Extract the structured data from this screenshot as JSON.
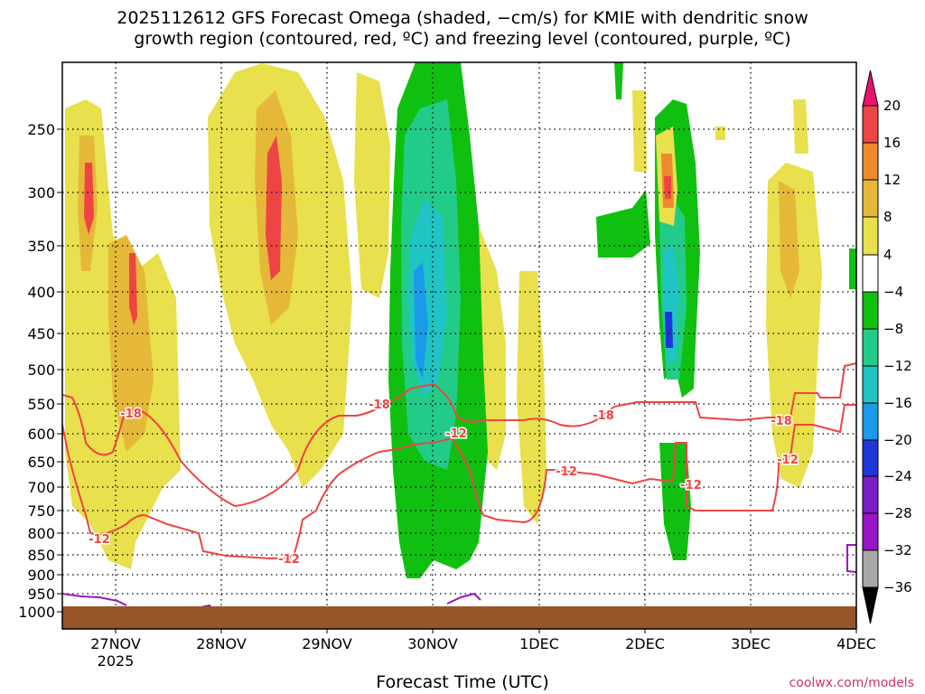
{
  "title_line1": "2025112612 GFS Forecast Omega (shaded, −cm/s) for KMIE with dendritic snow",
  "title_line2": "growth region (contoured, red, ºC) and freezing level (contoured, purple, ºC)",
  "x_axis_title": "Forecast Time (UTC)",
  "credit": "coolwx.com/models",
  "chart_data": {
    "type": "heatmap",
    "x_ticks": [
      "27NOV",
      "28NOV",
      "29NOV",
      "30NOV",
      "1DEC",
      "2DEC",
      "3DEC",
      "4DEC"
    ],
    "x_tick_year": "2025",
    "y_ticks": [
      "250",
      "300",
      "350",
      "400",
      "450",
      "500",
      "550",
      "600",
      "650",
      "700",
      "750",
      "800",
      "850",
      "900",
      "950",
      "1000"
    ],
    "colorbar_ticks": [
      "20",
      "16",
      "12",
      "8",
      "4",
      "−4",
      "−8",
      "−12",
      "−16",
      "−20",
      "−24",
      "−28",
      "−32",
      "−36"
    ],
    "colorbar_colors": [
      "#e8136d",
      "#ef4444",
      "#ee8a2e",
      "#e6b83a",
      "#e8e04c",
      "#ffffff",
      "#10c010",
      "#22cc88",
      "#20c4c4",
      "#1a9ae8",
      "#1f37d8",
      "#7a1ec6",
      "#9a14c8",
      "#a8a8a8",
      "#000000"
    ],
    "contour_labels": [
      "-18",
      "-12"
    ],
    "colors": {
      "dgz": "#ee4444",
      "freezing": "#9c14c0",
      "ground": "#99552a"
    }
  }
}
